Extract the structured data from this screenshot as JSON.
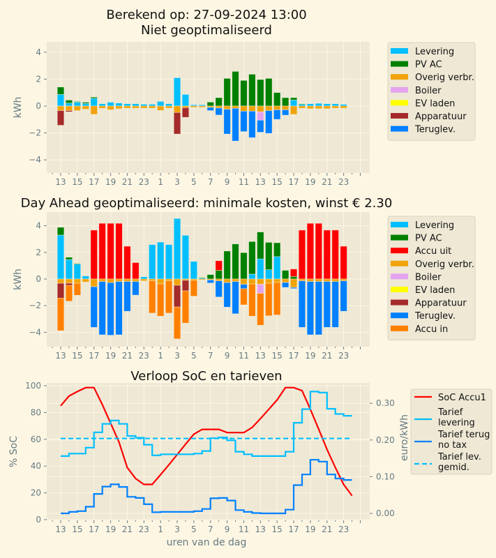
{
  "header": {
    "title_line1": "Berekend op: 27-09-2024 13:00",
    "title_line2": "Niet geoptimaliseerd"
  },
  "colors": {
    "background": "#fdf6e3",
    "axes_background": "#eee8d5",
    "Levering": "#00bfff",
    "PV AC": "#008000",
    "Accu uit": "#ff0000",
    "Overig verbr.": "#f0a30a",
    "Boiler": "#e4a3f0",
    "EV laden": "#ffff00",
    "Apparatuur": "#a52a2a",
    "Teruglev.": "#0080ff",
    "Accu in": "#ff8000",
    "SoC Accu1": "#ff0000",
    "Tarief levering": "#00bfff",
    "Tarief terug no tax": "#0080ff",
    "Tarief lev. gemid.": "#00bfff"
  },
  "chart_data": [
    {
      "type": "bar",
      "stacked": true,
      "title": "Niet geoptimaliseerd",
      "ylabel": "kWh",
      "ylim": [
        -5,
        4.8
      ],
      "y_ticks": [
        "4",
        "2",
        "0",
        "−2",
        "−4"
      ],
      "y_tick_values": [
        4,
        2,
        0,
        -2,
        -4
      ],
      "grid": true,
      "legend_position": "right",
      "categories": [
        13,
        14,
        15,
        16,
        17,
        18,
        19,
        20,
        21,
        22,
        23,
        0,
        1,
        2,
        3,
        4,
        5,
        6,
        7,
        8,
        9,
        10,
        11,
        12,
        13,
        14,
        15,
        16,
        17,
        18,
        19,
        20,
        21,
        22,
        23
      ],
      "x_tick_labels": [
        "13",
        "15",
        "17",
        "19",
        "21",
        "23",
        "1",
        "3",
        "5",
        "7",
        "9",
        "11",
        "13",
        "15",
        "17",
        "19",
        "21",
        "23"
      ],
      "series": [
        {
          "name": "Levering",
          "values": [
            0.86,
            0.22,
            0.29,
            0.19,
            0.57,
            0.17,
            0.28,
            0.22,
            0.17,
            0.17,
            0.13,
            0.13,
            0.34,
            0.17,
            2.1,
            0.86,
            0.09,
            0.09,
            0,
            0,
            0,
            0,
            0,
            0,
            0,
            0,
            0,
            0,
            0.45,
            0.12,
            0.17,
            0.2,
            0.17,
            0.17,
            0.12
          ]
        },
        {
          "name": "PV AC",
          "values": [
            0.55,
            0.22,
            0.05,
            0.09,
            0.09,
            0,
            0,
            0,
            0,
            0,
            0,
            0,
            0,
            0,
            0,
            0,
            0,
            0,
            0.29,
            0.62,
            2.05,
            2.57,
            1.9,
            2.36,
            1.97,
            2.05,
            1.0,
            0.62,
            0.17,
            0.05,
            0,
            0,
            0,
            0,
            0
          ]
        },
        {
          "name": "Overig verbr.",
          "values": [
            -0.34,
            -0.34,
            -0.34,
            -0.24,
            -0.62,
            -0.17,
            -0.28,
            -0.2,
            -0.16,
            -0.16,
            -0.16,
            -0.16,
            -0.33,
            -0.16,
            -0.48,
            -0.12,
            -0.1,
            -0.1,
            -0.1,
            -0.15,
            -0.24,
            -0.17,
            -0.38,
            -0.38,
            -0.43,
            -0.34,
            -0.28,
            -0.28,
            -0.62,
            -0.17,
            -0.2,
            -0.2,
            -0.2,
            -0.16,
            -0.16
          ]
        },
        {
          "name": "Boiler",
          "values": [
            0,
            0,
            0,
            0,
            0,
            0,
            0,
            0,
            0,
            0,
            0,
            0,
            0,
            0,
            0,
            0,
            0,
            0,
            0,
            0,
            0,
            0,
            0,
            0,
            -0.62,
            0,
            0,
            0,
            0,
            0,
            0,
            0,
            0,
            0,
            0
          ]
        },
        {
          "name": "EV laden",
          "values": [
            0,
            0,
            0,
            0,
            0,
            0,
            0,
            0,
            0,
            0,
            0,
            0,
            0,
            0,
            0,
            0,
            0,
            0,
            0,
            0,
            0,
            0,
            0,
            0,
            0,
            0,
            0,
            0,
            0,
            0,
            0,
            0,
            0,
            0,
            0
          ]
        },
        {
          "name": "Apparatuur",
          "values": [
            -1.09,
            -0.09,
            0,
            0,
            0,
            0,
            0,
            0,
            0,
            0,
            0,
            0,
            0,
            0,
            -1.6,
            -0.72,
            0,
            0,
            0,
            0,
            0,
            0,
            0,
            0,
            0,
            0,
            0,
            0,
            0,
            0,
            0,
            0,
            0,
            0,
            0
          ]
        },
        {
          "name": "Teruglev.",
          "values": [
            0,
            0,
            0,
            0,
            0,
            0,
            0,
            0,
            0,
            0,
            0,
            0,
            0,
            0,
            0,
            0,
            0,
            0,
            -0.24,
            -0.52,
            -1.84,
            -2.43,
            -1.52,
            -1.97,
            -0.9,
            -1.69,
            -0.71,
            -0.4,
            0,
            0,
            0,
            0,
            0,
            0,
            0
          ]
        }
      ]
    },
    {
      "type": "bar",
      "stacked": true,
      "title": "Day Ahead geoptimaliseerd: minimale kosten, winst € 2.30",
      "ylabel": "kWh",
      "ylim": [
        -5,
        4.8
      ],
      "y_ticks": [
        "4",
        "2",
        "0",
        "−2",
        "−4"
      ],
      "y_tick_values": [
        4,
        2,
        0,
        -2,
        -4
      ],
      "grid": true,
      "legend_position": "right",
      "categories": [
        13,
        14,
        15,
        16,
        17,
        18,
        19,
        20,
        21,
        22,
        23,
        0,
        1,
        2,
        3,
        4,
        5,
        6,
        7,
        8,
        9,
        10,
        11,
        12,
        13,
        14,
        15,
        16,
        17,
        18,
        19,
        20,
        21,
        22,
        23
      ],
      "x_tick_labels": [
        "13",
        "15",
        "17",
        "19",
        "21",
        "23",
        "1",
        "3",
        "5",
        "7",
        "9",
        "11",
        "13",
        "15",
        "17",
        "19",
        "21",
        "23"
      ],
      "series": [
        {
          "name": "Levering",
          "values": [
            3.3,
            1.46,
            1.12,
            0.23,
            0,
            0,
            0,
            0,
            0,
            0,
            0.16,
            2.58,
            2.77,
            2.58,
            4.54,
            3.28,
            1.32,
            0.07,
            0,
            0,
            0,
            0,
            0,
            0.37,
            1.51,
            0.7,
            1.68,
            0,
            0,
            0,
            0,
            0,
            0,
            0,
            0
          ]
        },
        {
          "name": "PV AC",
          "values": [
            0.58,
            0.17,
            0.05,
            0,
            0,
            0,
            0,
            0,
            0,
            0,
            0,
            0,
            0,
            0,
            0,
            0,
            0,
            0.05,
            0.33,
            0.65,
            2.1,
            2.63,
            1.98,
            2.44,
            2.02,
            2.05,
            1.04,
            0.65,
            0.19,
            0,
            0,
            0,
            0,
            0,
            0
          ]
        },
        {
          "name": "Accu uit",
          "values": [
            0,
            0,
            0,
            0,
            3.67,
            4.18,
            4.18,
            4.18,
            2.46,
            1.23,
            0,
            0,
            0,
            0,
            0,
            0,
            0,
            0,
            0,
            0.72,
            0,
            0,
            0,
            0,
            0,
            0,
            0,
            0,
            0.56,
            3.67,
            4.18,
            4.18,
            3.67,
            3.67,
            2.46
          ]
        },
        {
          "name": "Overig verbr.",
          "values": [
            -0.32,
            -0.32,
            -0.32,
            -0.23,
            -0.58,
            -0.19,
            -0.27,
            -0.19,
            -0.19,
            -0.19,
            -0.14,
            -0.14,
            -0.37,
            -0.14,
            -0.47,
            -0.1,
            -0.1,
            -0.07,
            -0.07,
            -0.14,
            -0.27,
            -0.19,
            -0.4,
            -0.37,
            -0.4,
            -0.32,
            -0.26,
            -0.26,
            -0.63,
            -0.14,
            -0.19,
            -0.19,
            -0.19,
            -0.19,
            -0.14
          ]
        },
        {
          "name": "Boiler",
          "values": [
            0,
            0,
            0,
            0,
            0,
            0,
            0,
            0,
            0,
            0,
            0,
            0,
            0,
            0,
            0,
            0,
            0,
            0,
            0,
            0,
            0,
            0,
            0,
            0,
            -0.67,
            0,
            0,
            0,
            0,
            0,
            0,
            0,
            0,
            0,
            0
          ]
        },
        {
          "name": "EV laden",
          "values": [
            0,
            0,
            0,
            0,
            0,
            0,
            0,
            0,
            0,
            0,
            0,
            0,
            0,
            0,
            0,
            0,
            0,
            0,
            0,
            0,
            0,
            0,
            0,
            0,
            0,
            0,
            0,
            0,
            0,
            0,
            0,
            0,
            0,
            0,
            0
          ]
        },
        {
          "name": "Apparatuur",
          "values": [
            -1.12,
            -0.16,
            0,
            0,
            0,
            0,
            0,
            0,
            0,
            0,
            0,
            0,
            0,
            0,
            -1.63,
            -0.79,
            0,
            0,
            0,
            0,
            0,
            0,
            0,
            0,
            0,
            0,
            0,
            0,
            0,
            0,
            0,
            0,
            0,
            0,
            0
          ]
        },
        {
          "name": "Teruglev.",
          "values": [
            0,
            0,
            0,
            0,
            -3.05,
            -4.0,
            -3.95,
            -4.0,
            -2.23,
            -1.02,
            0,
            0,
            0,
            0,
            0,
            0,
            0,
            0,
            -0.23,
            -1.21,
            -1.84,
            -2.42,
            -0.33,
            0,
            0,
            0,
            0,
            -0.37,
            -0.09,
            -3.49,
            -4.0,
            -4.0,
            -3.44,
            -3.44,
            -2.28
          ]
        },
        {
          "name": "Accu in",
          "values": [
            -2.44,
            -1.19,
            -0.9,
            0,
            0,
            0,
            0,
            0,
            0,
            0,
            0,
            -2.42,
            -2.42,
            -2.42,
            -2.4,
            -2.42,
            -1.19,
            0,
            0,
            0,
            0,
            0,
            -1.21,
            -2.42,
            -2.4,
            -2.44,
            -2.44,
            0,
            0,
            0,
            0,
            0,
            0,
            0,
            0
          ]
        }
      ]
    },
    {
      "type": "line",
      "title": "Verloop SoC en tarieven",
      "xlabel": "uren van de dag",
      "ylabel": "% SoC",
      "ylabel_right": "euro/kWh",
      "ylim": [
        0,
        101
      ],
      "ylim_right": [
        -0.017,
        0.35
      ],
      "y_ticks": [
        "100",
        "80",
        "60",
        "40",
        "20",
        "0"
      ],
      "y_tick_values": [
        100,
        80,
        60,
        40,
        20,
        0
      ],
      "y_ticks_right": [
        "0.30",
        "0.20",
        "0.10",
        "0.00"
      ],
      "y_tick_values_right": [
        0.3,
        0.2,
        0.1,
        0.0
      ],
      "grid": true,
      "legend_position": "right",
      "x_tick_labels": [
        "13",
        "15",
        "17",
        "19",
        "21",
        "23",
        "1",
        "3",
        "5",
        "7",
        "9",
        "11",
        "13",
        "15",
        "17",
        "19",
        "21",
        "23"
      ],
      "soc_hours": [
        13,
        14,
        15,
        16,
        17,
        18,
        19,
        20,
        21,
        22,
        23,
        0,
        1,
        2,
        3,
        4,
        5,
        6,
        7,
        8,
        9,
        10,
        11,
        12,
        13,
        14,
        15,
        16,
        17,
        18,
        19,
        20,
        21,
        22,
        23,
        24
      ],
      "tariff_hours": [
        13,
        14,
        15,
        16,
        17,
        18,
        19,
        20,
        21,
        22,
        23,
        0,
        1,
        2,
        3,
        4,
        5,
        6,
        7,
        8,
        9,
        10,
        11,
        12,
        13,
        14,
        15,
        16,
        17,
        18,
        19,
        20,
        21,
        22,
        23
      ],
      "series": [
        {
          "name": "SoC Accu1",
          "axis": "left",
          "style": "line",
          "values": [
            85,
            92.3,
            95.6,
            98.6,
            98.6,
            85.9,
            72,
            58,
            38.9,
            30.7,
            26.3,
            26.3,
            33.6,
            41,
            48.6,
            56.3,
            63.8,
            67.4,
            67.4,
            67.4,
            65,
            65,
            65,
            68.8,
            75.4,
            82.4,
            89.4,
            98.6,
            98.6,
            96.3,
            82.4,
            67.6,
            52.4,
            38.9,
            26.3,
            17.9
          ]
        },
        {
          "name": "Tarief levering",
          "legend_label": "Tarief\nlevering",
          "axis": "right",
          "style": "step",
          "values": [
            0.156,
            0.163,
            0.163,
            0.179,
            0.221,
            0.244,
            0.253,
            0.244,
            0.211,
            0.206,
            0.187,
            0.158,
            0.161,
            0.161,
            0.161,
            0.161,
            0.163,
            0.17,
            0.205,
            0.207,
            0.199,
            0.168,
            0.161,
            0.156,
            0.156,
            0.156,
            0.156,
            0.168,
            0.247,
            0.284,
            0.332,
            0.329,
            0.285,
            0.271,
            0.266
          ]
        },
        {
          "name": "Tarief terug no tax",
          "legend_label": "Tarief terug\nno tax",
          "axis": "right",
          "style": "step",
          "values": [
            0.0,
            0.004,
            0.006,
            0.018,
            0.053,
            0.073,
            0.079,
            0.072,
            0.045,
            0.042,
            0.025,
            0.003,
            0.004,
            0.004,
            0.004,
            0.004,
            0.006,
            0.012,
            0.041,
            0.042,
            0.035,
            0.009,
            0.004,
            0.001,
            0.0,
            0.0,
            0.0,
            0.01,
            0.077,
            0.106,
            0.146,
            0.141,
            0.106,
            0.095,
            0.091
          ]
        },
        {
          "name": "Tarief lev. gemid.",
          "legend_label": "Tarief lev.\ngemid.",
          "axis": "right",
          "style": "dashed",
          "value": 0.204
        }
      ]
    }
  ]
}
